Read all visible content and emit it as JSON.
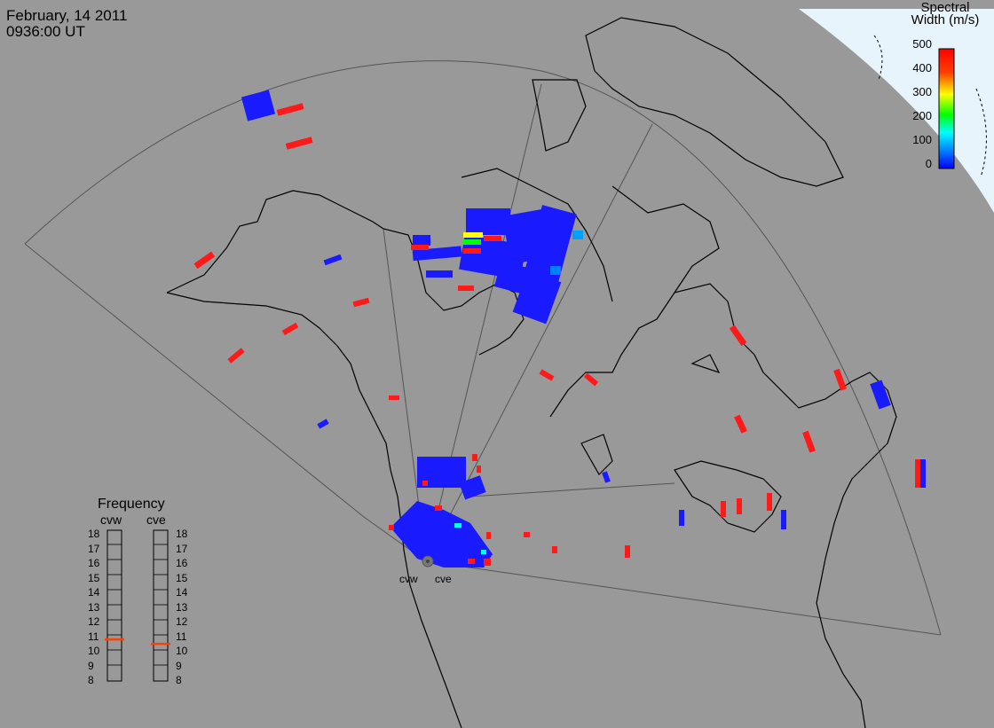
{
  "header": {
    "date": "February, 14 2011",
    "time": "0936:00 UT"
  },
  "colorbar": {
    "title_line1": "Spectral",
    "title_line2": "Width (m/s)",
    "ticks": [
      "500",
      "400",
      "300",
      "200",
      "100",
      "0"
    ],
    "colors": [
      "#ff0000",
      "#ff8000",
      "#ffff00",
      "#00ff00",
      "#00ffff",
      "#0080ff",
      "#0000ff"
    ]
  },
  "frequency_panel": {
    "title": "Frequency",
    "radars": [
      {
        "label": "cvw",
        "value": 10.9
      },
      {
        "label": "cve",
        "value": 10.6
      }
    ],
    "ticks": [
      "18",
      "17",
      "16",
      "15",
      "14",
      "13",
      "12",
      "11",
      "10",
      "9",
      "8"
    ]
  },
  "radar_labels": {
    "west": "cvw",
    "east": "cve"
  },
  "colors": {
    "background": "#999999",
    "ocean_daylight": "#e8f4fc",
    "coast": "#000000",
    "high_width": "#ff0000",
    "low_width": "#1a1aff",
    "freq_marker": "#ff4000"
  }
}
